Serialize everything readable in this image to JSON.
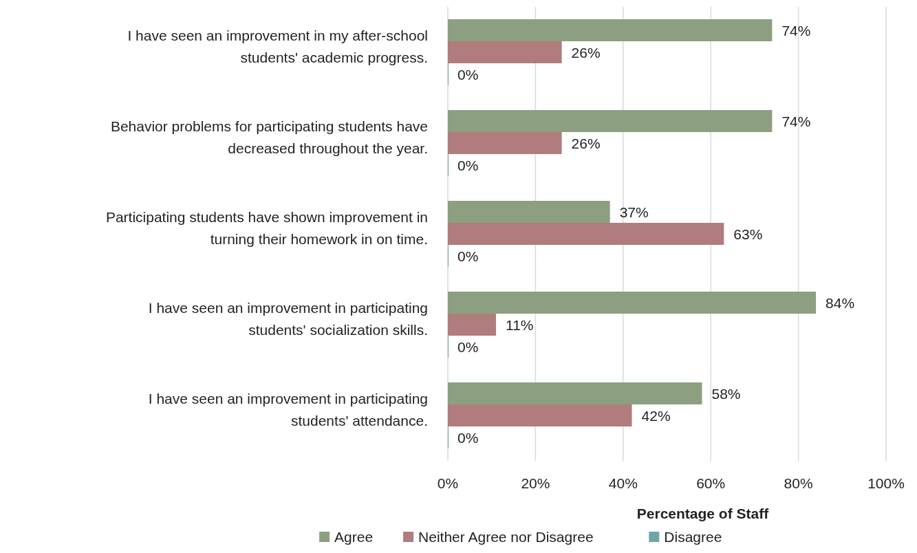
{
  "chart_data": {
    "type": "bar",
    "orientation": "horizontal",
    "categories": [
      "I have seen an improvement in my after-school\nstudents' academic progress.",
      "Behavior problems for participating students have\ndecreased throughout the year.",
      "Participating students have shown improvement in\nturning their homework in on time.",
      "I have seen an improvement in participating\nstudents' socialization skills.",
      "I have seen an improvement in participating\nstudents' attendance."
    ],
    "series": [
      {
        "name": "Agree",
        "color": "#8c9f80",
        "values": [
          74,
          74,
          37,
          84,
          58
        ],
        "value_labels": [
          "74%",
          "74%",
          "37%",
          "84%",
          "58%"
        ]
      },
      {
        "name": "Neither Agree nor Disagree",
        "color": "#b07c7e",
        "values": [
          26,
          26,
          63,
          11,
          42
        ],
        "value_labels": [
          "26%",
          "26%",
          "63%",
          "11%",
          "42%"
        ]
      },
      {
        "name": "Disagree",
        "color": "#6fa6a6",
        "values": [
          0,
          0,
          0,
          0,
          0
        ],
        "value_labels": [
          "0%",
          "0%",
          "0%",
          "0%",
          "0%"
        ]
      }
    ],
    "xlim": [
      0,
      100
    ],
    "xticks": [
      {
        "value": 0,
        "label": "0%"
      },
      {
        "value": 20,
        "label": "20%"
      },
      {
        "value": 40,
        "label": "40%"
      },
      {
        "value": 60,
        "label": "60%"
      },
      {
        "value": 80,
        "label": "80%"
      },
      {
        "value": 100,
        "label": "100%"
      }
    ],
    "xlabel": "Percentage of Staff",
    "grid": "x",
    "legend": "bottom"
  }
}
